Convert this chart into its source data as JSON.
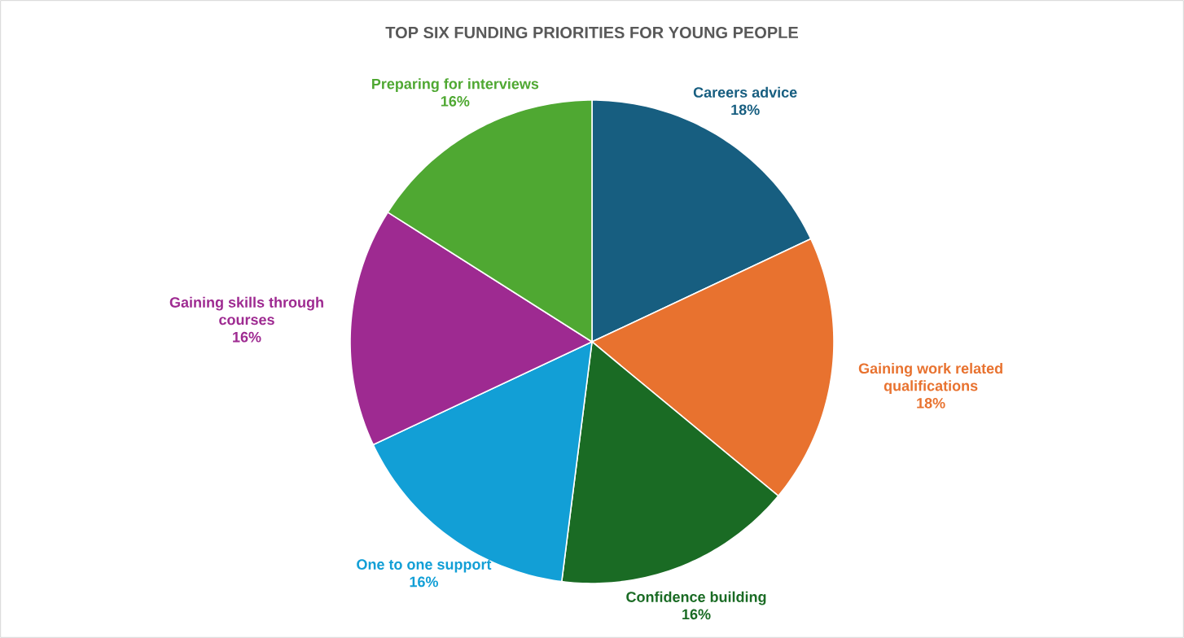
{
  "chart_data": {
    "type": "pie",
    "title": "TOP SIX FUNDING PRIORITIES FOR YOUNG PEOPLE",
    "categories": [
      "Careers advice",
      "Gaining work related qualifications",
      "Confidence building",
      "One to one support",
      "Gaining skills through courses",
      "Preparing for interviews"
    ],
    "values": [
      18,
      18,
      16,
      16,
      16,
      16
    ],
    "value_labels": [
      "18%",
      "18%",
      "16%",
      "16%",
      "16%",
      "16%"
    ],
    "colors": [
      "#175e80",
      "#e8722f",
      "#1a6b24",
      "#129fd6",
      "#9e2a91",
      "#4fa832"
    ]
  }
}
